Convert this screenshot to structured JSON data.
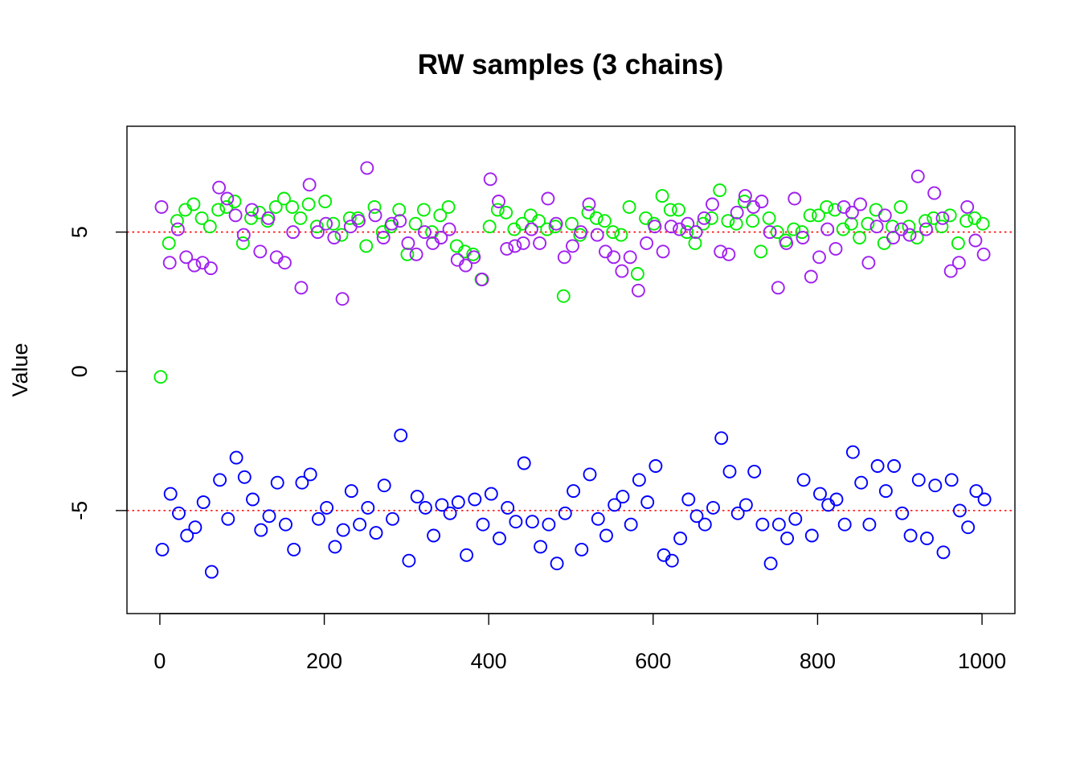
{
  "chart_data": {
    "type": "scatter",
    "title": "RW samples (3 chains)",
    "xlabel": "",
    "ylabel": "Value",
    "xlim": [
      -40,
      1040
    ],
    "ylim": [
      -8.7,
      8.8
    ],
    "x_ticks": [
      0,
      200,
      400,
      600,
      800,
      1000
    ],
    "y_ticks": [
      -5,
      0,
      5
    ],
    "grid": false,
    "legend": "none",
    "reference_lines": [
      {
        "axis": "y",
        "value": 5,
        "color": "#ff0000",
        "style": "dotted"
      },
      {
        "axis": "y",
        "value": -5,
        "color": "#ff0000",
        "style": "dotted"
      }
    ],
    "marker": "open-circle",
    "series": [
      {
        "color": "#00ee00",
        "start_x": 1,
        "step": 10,
        "values": [
          -0.2,
          4.6,
          5.4,
          5.8,
          6.0,
          5.5,
          5.2,
          5.8,
          5.9,
          6.1,
          4.6,
          5.5,
          5.7,
          5.4,
          5.9,
          6.2,
          5.9,
          5.5,
          6.0,
          5.2,
          6.1,
          5.3,
          4.9,
          5.5,
          5.5,
          4.5,
          5.9,
          5.0,
          5.2,
          5.8,
          4.2,
          5.3,
          5.8,
          5.0,
          5.6,
          5.9,
          4.5,
          4.3,
          4.2,
          3.3,
          5.2,
          5.8,
          5.7,
          5.1,
          5.3,
          5.6,
          5.4,
          5.1,
          5.2,
          2.7,
          5.3,
          4.9,
          5.7,
          5.5,
          5.4,
          5.0,
          4.9,
          5.9,
          3.5,
          5.5,
          5.3,
          6.3,
          5.8,
          5.8,
          5.0,
          4.6,
          5.3,
          5.5,
          6.5,
          5.4,
          5.3,
          6.1,
          5.4,
          4.3,
          5.5,
          5.0,
          4.7,
          5.1,
          5.0,
          5.6,
          5.6,
          5.9,
          5.8,
          5.1,
          5.3,
          4.8,
          5.3,
          5.8,
          4.6,
          5.2,
          5.9,
          5.2,
          4.8,
          5.4,
          5.5,
          5.2,
          5.6,
          4.6,
          5.4,
          5.5,
          5.3
        ]
      },
      {
        "color": "#a020f0",
        "start_x": 2,
        "step": 10,
        "values": [
          5.9,
          3.9,
          5.1,
          4.1,
          3.8,
          3.9,
          3.7,
          6.6,
          6.2,
          5.6,
          4.9,
          5.8,
          4.3,
          5.5,
          4.1,
          3.9,
          5.0,
          3.0,
          6.7,
          5.0,
          5.3,
          4.8,
          2.6,
          5.2,
          5.4,
          7.3,
          5.6,
          4.8,
          5.3,
          5.4,
          4.6,
          4.2,
          5.0,
          4.6,
          4.8,
          5.1,
          4.0,
          3.8,
          4.1,
          3.3,
          6.9,
          6.1,
          4.4,
          4.5,
          4.6,
          5.1,
          4.6,
          6.2,
          5.3,
          4.1,
          4.5,
          5.0,
          6.0,
          4.9,
          4.3,
          4.1,
          3.6,
          4.1,
          2.9,
          4.6,
          5.2,
          4.3,
          5.2,
          5.1,
          5.3,
          5.0,
          5.5,
          6.0,
          4.3,
          4.2,
          5.7,
          6.3,
          5.9,
          6.1,
          5.0,
          3.0,
          4.6,
          6.2,
          4.8,
          3.4,
          4.1,
          5.1,
          4.4,
          5.9,
          5.7,
          6.0,
          3.9,
          5.2,
          5.6,
          4.8,
          5.1,
          4.9,
          7.0,
          5.1,
          6.4,
          5.5,
          3.6,
          3.9,
          5.9,
          4.7,
          4.2
        ]
      },
      {
        "color": "#0000ff",
        "start_x": 3,
        "step": 10,
        "values": [
          -6.4,
          -4.4,
          -5.1,
          -5.9,
          -5.6,
          -4.7,
          -7.2,
          -3.9,
          -5.3,
          -3.1,
          -3.8,
          -4.6,
          -5.7,
          -5.2,
          -4.0,
          -5.5,
          -6.4,
          -4.0,
          -3.7,
          -5.3,
          -4.9,
          -6.3,
          -5.7,
          -4.3,
          -5.5,
          -4.9,
          -5.8,
          -4.1,
          -5.3,
          -2.3,
          -6.8,
          -4.5,
          -4.9,
          -5.9,
          -4.8,
          -5.1,
          -4.7,
          -6.6,
          -4.6,
          -5.5,
          -4.4,
          -6.0,
          -4.9,
          -5.4,
          -3.3,
          -5.4,
          -6.3,
          -5.5,
          -6.9,
          -5.1,
          -4.3,
          -6.4,
          -3.7,
          -5.3,
          -5.9,
          -4.8,
          -4.5,
          -5.5,
          -3.9,
          -4.7,
          -3.4,
          -6.6,
          -6.8,
          -6.0,
          -4.6,
          -5.2,
          -5.5,
          -4.9,
          -2.4,
          -3.6,
          -5.1,
          -4.8,
          -3.6,
          -5.5,
          -6.9,
          -5.5,
          -6.0,
          -5.3,
          -3.9,
          -5.9,
          -4.4,
          -4.8,
          -4.6,
          -5.5,
          -2.9,
          -4.0,
          -5.5,
          -3.4,
          -4.3,
          -3.4,
          -5.1,
          -5.9,
          -3.9,
          -6.0,
          -4.1,
          -6.5,
          -3.9,
          -5.0,
          -5.6,
          -4.3,
          -4.6
        ]
      }
    ]
  }
}
